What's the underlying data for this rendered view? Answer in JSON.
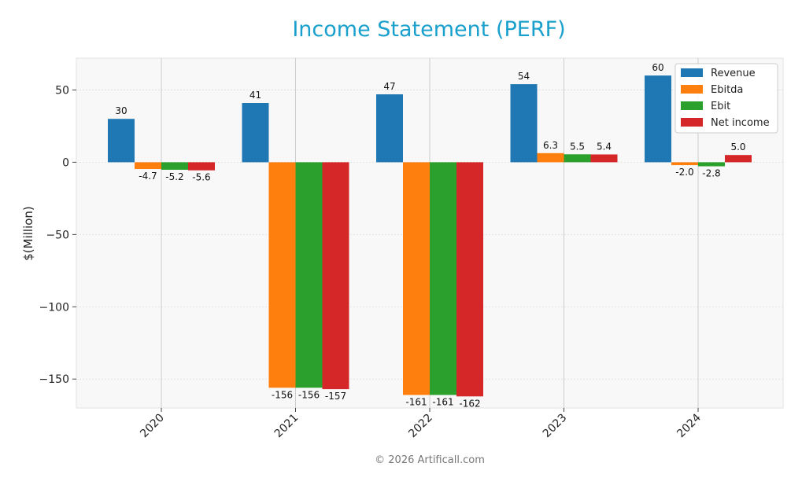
{
  "chart_data": {
    "type": "bar",
    "title": "Income Statement (PERF)",
    "xlabel": "",
    "ylabel": "$(Million)",
    "categories": [
      "2020",
      "2021",
      "2022",
      "2023",
      "2024"
    ],
    "ylim": [
      -170,
      72
    ],
    "yticks": [
      50,
      0,
      -50,
      -100,
      -150
    ],
    "grid": true,
    "legend_position": "top-right",
    "series": [
      {
        "name": "Revenue",
        "color": "#1f77b4",
        "values": [
          30,
          41,
          47,
          54,
          60
        ],
        "labels": [
          "30",
          "41",
          "47",
          "54",
          "60"
        ]
      },
      {
        "name": "Ebitda",
        "color": "#ff7f0e",
        "values": [
          -4.7,
          -156,
          -161,
          6.3,
          -2.0
        ],
        "labels": [
          "-4.7",
          "-156",
          "-161",
          "6.3",
          "-2.0"
        ]
      },
      {
        "name": "Ebit",
        "color": "#2ca02c",
        "values": [
          -5.2,
          -156,
          -161,
          5.5,
          -2.8
        ],
        "labels": [
          "-5.2",
          "-156",
          "-161",
          "5.5",
          "-2.8"
        ]
      },
      {
        "name": "Net income",
        "color": "#d62728",
        "values": [
          -5.6,
          -157,
          -162,
          5.4,
          5.0
        ],
        "labels": [
          "-5.6",
          "-157",
          "-162",
          "5.4",
          "5.0"
        ]
      }
    ]
  },
  "footer": {
    "copyright": "© 2026 Artificall.com"
  }
}
